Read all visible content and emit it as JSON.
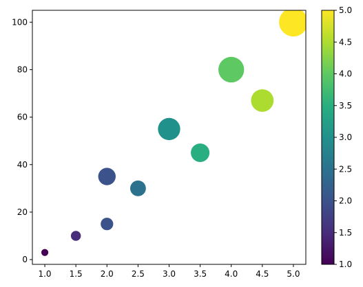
{
  "chart_data": {
    "type": "scatter",
    "x": [
      1.0,
      1.5,
      2.0,
      2.0,
      2.5,
      3.0,
      3.5,
      4.0,
      4.5,
      5.0
    ],
    "y": [
      3,
      10,
      15,
      35,
      30,
      55,
      45,
      80,
      67,
      100
    ],
    "color_values": [
      1.0,
      1.5,
      2.0,
      2.0,
      2.5,
      3.0,
      3.5,
      4.0,
      4.5,
      5.0
    ],
    "sizes": [
      60,
      120,
      190,
      370,
      300,
      600,
      420,
      800,
      620,
      1000
    ],
    "xlim": [
      0.8,
      5.2
    ],
    "ylim": [
      -2,
      105
    ],
    "xticks": [
      1.0,
      1.5,
      2.0,
      2.5,
      3.0,
      3.5,
      4.0,
      4.5,
      5.0
    ],
    "xtick_labels": [
      "1.0",
      "1.5",
      "2.0",
      "2.5",
      "3.0",
      "3.5",
      "4.0",
      "4.5",
      "5.0"
    ],
    "yticks": [
      0,
      20,
      40,
      60,
      80,
      100
    ],
    "ytick_labels": [
      "0",
      "20",
      "40",
      "60",
      "80",
      "100"
    ],
    "colorbar": {
      "range": [
        1.0,
        5.0
      ],
      "ticks": [
        1.0,
        1.5,
        2.0,
        2.5,
        3.0,
        3.5,
        4.0,
        4.5,
        5.0
      ],
      "tick_labels": [
        "1.0",
        "1.5",
        "2.0",
        "2.5",
        "3.0",
        "3.5",
        "4.0",
        "4.5",
        "5.0"
      ],
      "colormap": "viridis"
    },
    "grid": false,
    "title": "",
    "xlabel": "",
    "ylabel": ""
  }
}
